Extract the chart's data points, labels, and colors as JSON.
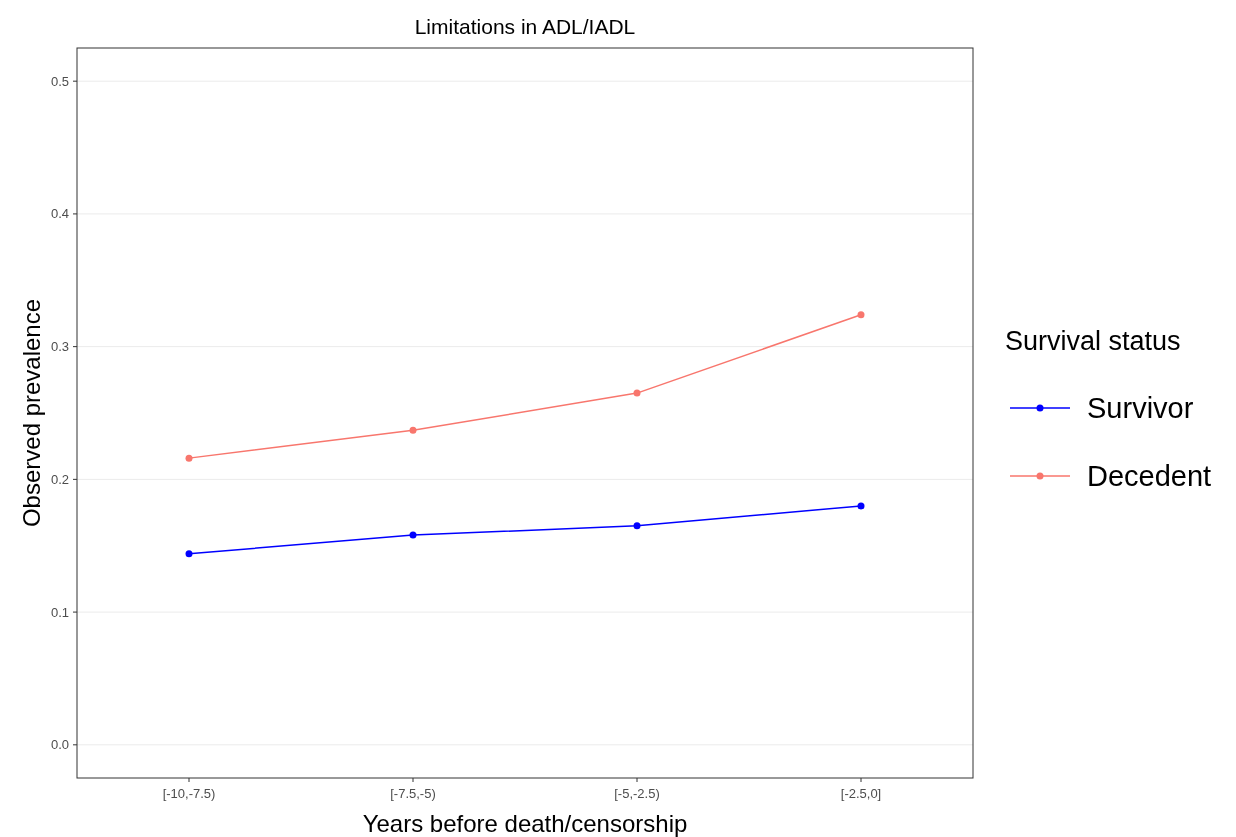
{
  "chart_data": {
    "type": "line",
    "title": "Limitations in ADL/IADL",
    "xlabel": "Years before death/censorship",
    "ylabel": "Observed prevalence",
    "legend_title": "Survival status",
    "categories": [
      "[-10,-7.5)",
      "[-7.5,-5)",
      "[-5,-2.5)",
      "[-2.5,0]"
    ],
    "series": [
      {
        "name": "Survivor",
        "color": "#0000ff",
        "values": [
          0.144,
          0.158,
          0.165,
          0.18
        ]
      },
      {
        "name": "Decedent",
        "color": "#f8766d",
        "values": [
          0.216,
          0.237,
          0.265,
          0.324
        ]
      }
    ],
    "ylim": [
      -0.025,
      0.525
    ],
    "yticks": [
      {
        "value": 0,
        "label": "0.0"
      },
      0.1,
      0.2,
      0.3,
      0.4,
      0.5
    ],
    "grid": "y",
    "legend": "right",
    "marker": "circle",
    "line_style": "solid"
  }
}
